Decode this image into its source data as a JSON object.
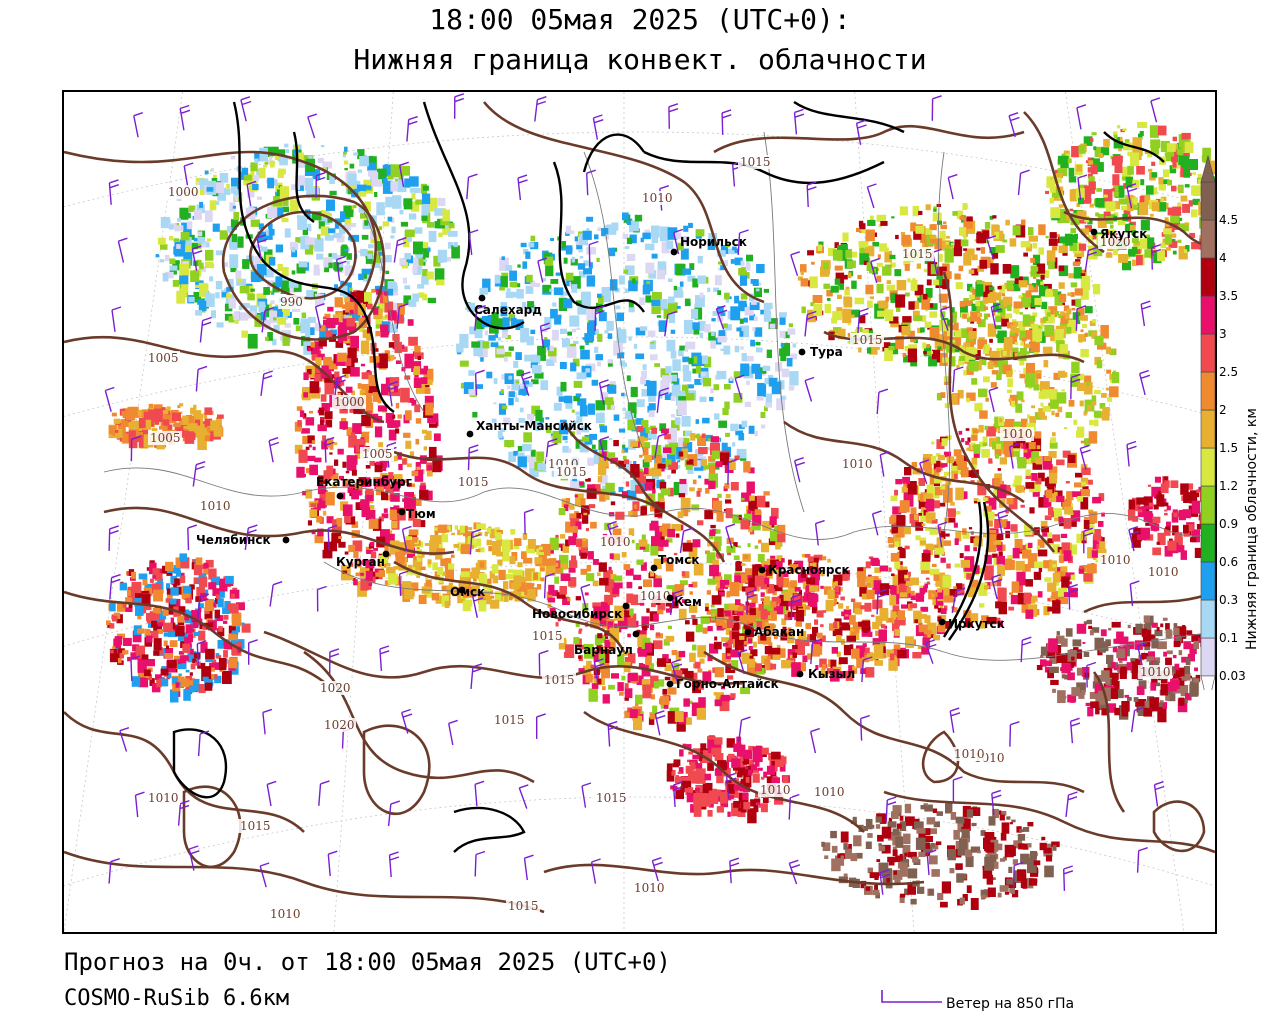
{
  "header": {
    "title_line1": "18:00 05мая 2025 (UTC+0):",
    "title_line2": "Нижняя граница конвект. облачности"
  },
  "footer": {
    "forecast": "Прогноз на 0ч. от 18:00 05мая 2025 (UTC+0)",
    "model": "COSMO-RuSib 6.6км",
    "wind_legend": "Ветер на 850 гПа"
  },
  "legend": {
    "title": "Нижняя граница облачности, км",
    "levels": [
      "0.03",
      "0.1",
      "0.3",
      "0.6",
      "0.9",
      "1.2",
      "1.5",
      "2",
      "2.5",
      "3",
      "3.5",
      "4",
      "4.5"
    ],
    "colors": [
      "#dcd8f4",
      "#a8d8f4",
      "#1ea0ee",
      "#20b020",
      "#90d020",
      "#d8e840",
      "#e8b030",
      "#f08a30",
      "#f04a50",
      "#e8106a",
      "#b00010",
      "#a07060",
      "#806050"
    ]
  },
  "colors": {
    "wind_barb": "#7a1fd0",
    "isobar": "#6b3b2a",
    "coast": "#000000"
  },
  "cities": [
    {
      "name": "Норильск"
    },
    {
      "name": "Якутск"
    },
    {
      "name": "Салехард"
    },
    {
      "name": "Тура"
    },
    {
      "name": "Ханты-Мансийск"
    },
    {
      "name": "Екатеринбург"
    },
    {
      "name": "Тюм"
    },
    {
      "name": "Челябинск"
    },
    {
      "name": "Курган"
    },
    {
      "name": "Омск"
    },
    {
      "name": "Новосибирск"
    },
    {
      "name": "Томск"
    },
    {
      "name": "Кем"
    },
    {
      "name": "Красноярск"
    },
    {
      "name": "Абакан"
    },
    {
      "name": "Барнаул"
    },
    {
      "name": "Горно-Алтайск"
    },
    {
      "name": "Кызыл"
    },
    {
      "name": "Иркутск"
    }
  ],
  "isobar_labels": [
    "1000",
    "990",
    "1005",
    "1005",
    "1000",
    "1005",
    "1010",
    "1010",
    "1015",
    "1010",
    "1020",
    "1015",
    "1015",
    "1015",
    "1010",
    "1015",
    "1015",
    "1010",
    "1020",
    "1010",
    "1015",
    "1015",
    "1015",
    "1010",
    "1010",
    "1010",
    "1010",
    "1010",
    "1010",
    "1010",
    "1015",
    "1010",
    "1020",
    "1010",
    "1010",
    "1015",
    "1010"
  ]
}
